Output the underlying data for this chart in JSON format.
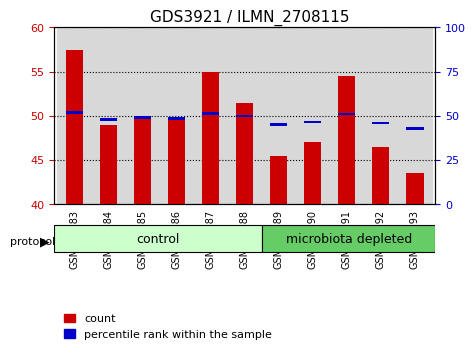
{
  "title": "GDS3921 / ILMN_2708115",
  "samples": [
    "GSM561883",
    "GSM561884",
    "GSM561885",
    "GSM561886",
    "GSM561887",
    "GSM561888",
    "GSM561889",
    "GSM561890",
    "GSM561891",
    "GSM561892",
    "GSM561893"
  ],
  "count_values": [
    57.5,
    49.0,
    50.0,
    49.5,
    55.0,
    51.5,
    45.5,
    47.0,
    54.5,
    46.5,
    43.5
  ],
  "percentile_values": [
    52.0,
    48.0,
    49.0,
    48.5,
    51.2,
    50.0,
    45.0,
    46.5,
    51.0,
    46.0,
    43.0
  ],
  "baseline": 40,
  "ylim_left": [
    40,
    60
  ],
  "ylim_right": [
    0,
    100
  ],
  "yticks_left": [
    40,
    45,
    50,
    55,
    60
  ],
  "yticks_right": [
    0,
    25,
    50,
    75,
    100
  ],
  "bar_color_red": "#cc0000",
  "bar_color_blue": "#0000cc",
  "bar_width": 0.5,
  "grid_color": "black",
  "bg_color": "#f0f0f0",
  "control_samples": 6,
  "protocol_label": "protocol",
  "group_labels": [
    "control",
    "microbiota depleted"
  ],
  "group_colors": [
    "#ccffcc",
    "#66cc66"
  ],
  "legend_items": [
    "count",
    "percentile rank within the sample"
  ],
  "title_fontsize": 11,
  "tick_fontsize": 8,
  "label_fontsize": 8,
  "group_label_fontsize": 9
}
